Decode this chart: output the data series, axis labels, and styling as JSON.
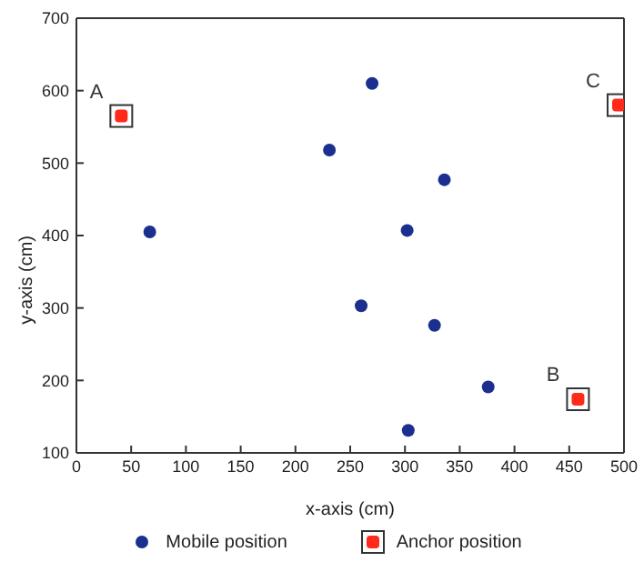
{
  "chart_data": {
    "type": "scatter",
    "xlabel": "x-axis (cm)",
    "ylabel": "y-axis (cm)",
    "xlim": [
      0,
      500
    ],
    "xticks": [
      0,
      50,
      100,
      150,
      200,
      250,
      300,
      350,
      400,
      450,
      500
    ],
    "ylim": [
      100,
      700
    ],
    "yticks": [
      100,
      200,
      300,
      400,
      500,
      600,
      700
    ],
    "legend": "bottom",
    "series": [
      {
        "name": "Mobile position",
        "color": "#1a2f8f",
        "marker": "circle",
        "x": [
          67,
          231,
          270,
          302,
          336,
          260,
          327,
          376,
          303
        ],
        "values": [
          405,
          518,
          610,
          407,
          477,
          303,
          276,
          191,
          131
        ]
      },
      {
        "name": "Anchor position",
        "color": "#ff2a1a",
        "marker": "square",
        "x": [
          41,
          458,
          495
        ],
        "values": [
          565,
          174,
          580
        ]
      }
    ],
    "annotations": [
      {
        "text": "A",
        "x": 41,
        "y": 565
      },
      {
        "text": "B",
        "x": 458,
        "y": 174
      },
      {
        "text": "C",
        "x": 495,
        "y": 580
      }
    ]
  }
}
